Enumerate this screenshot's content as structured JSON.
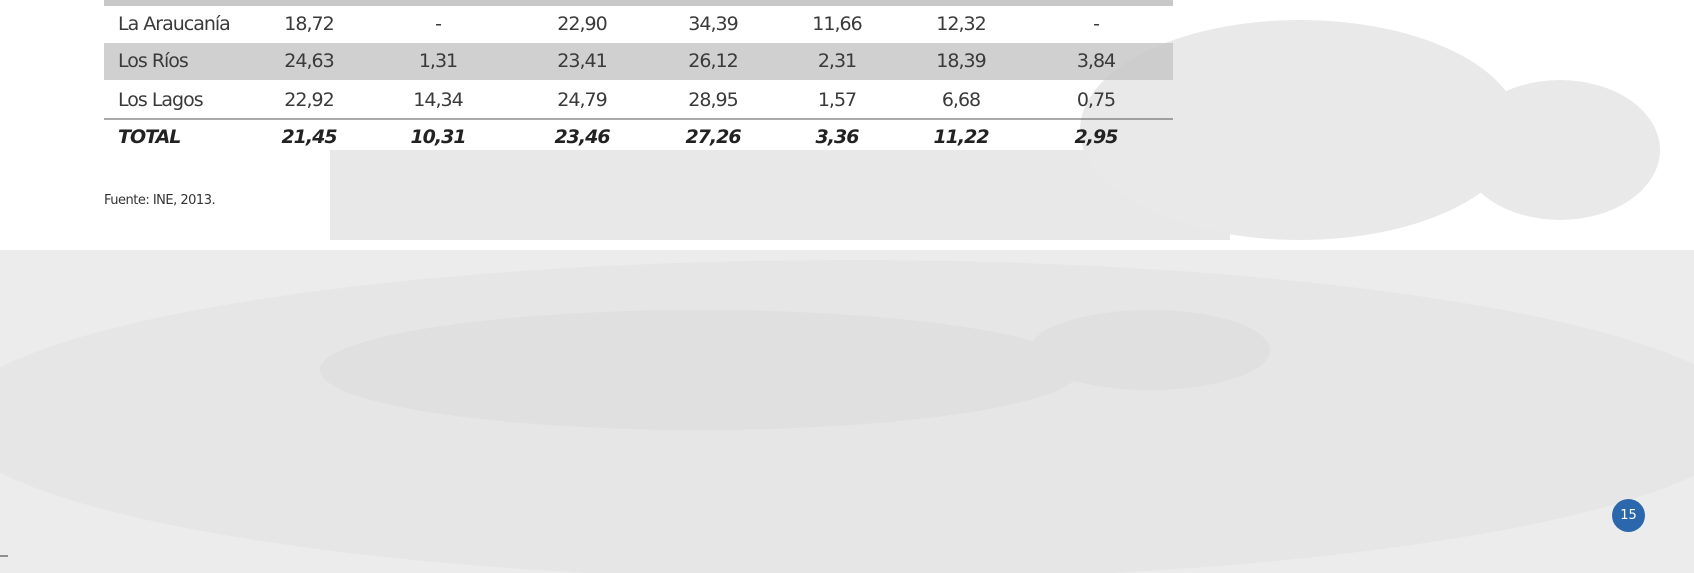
{
  "table": {
    "rows": [
      [
        "La Araucanía",
        "18,72",
        "-",
        "22,90",
        "34,39",
        "11,66",
        "12,32",
        "-"
      ],
      [
        "Los Ríos",
        "24,63",
        "1,31",
        "23,41",
        "26,12",
        "2,31",
        "18,39",
        "3,84"
      ],
      [
        "Los Lagos",
        "22,92",
        "14,34",
        "24,79",
        "28,95",
        "1,57",
        "6,68",
        "0,75"
      ],
      [
        "TOTAL",
        "21,45",
        "10,31",
        "23,46",
        "27,26",
        "3,36",
        "11,22",
        "2,95"
      ]
    ]
  },
  "source": "Fuente: INE, 2013.",
  "page_number": "15"
}
